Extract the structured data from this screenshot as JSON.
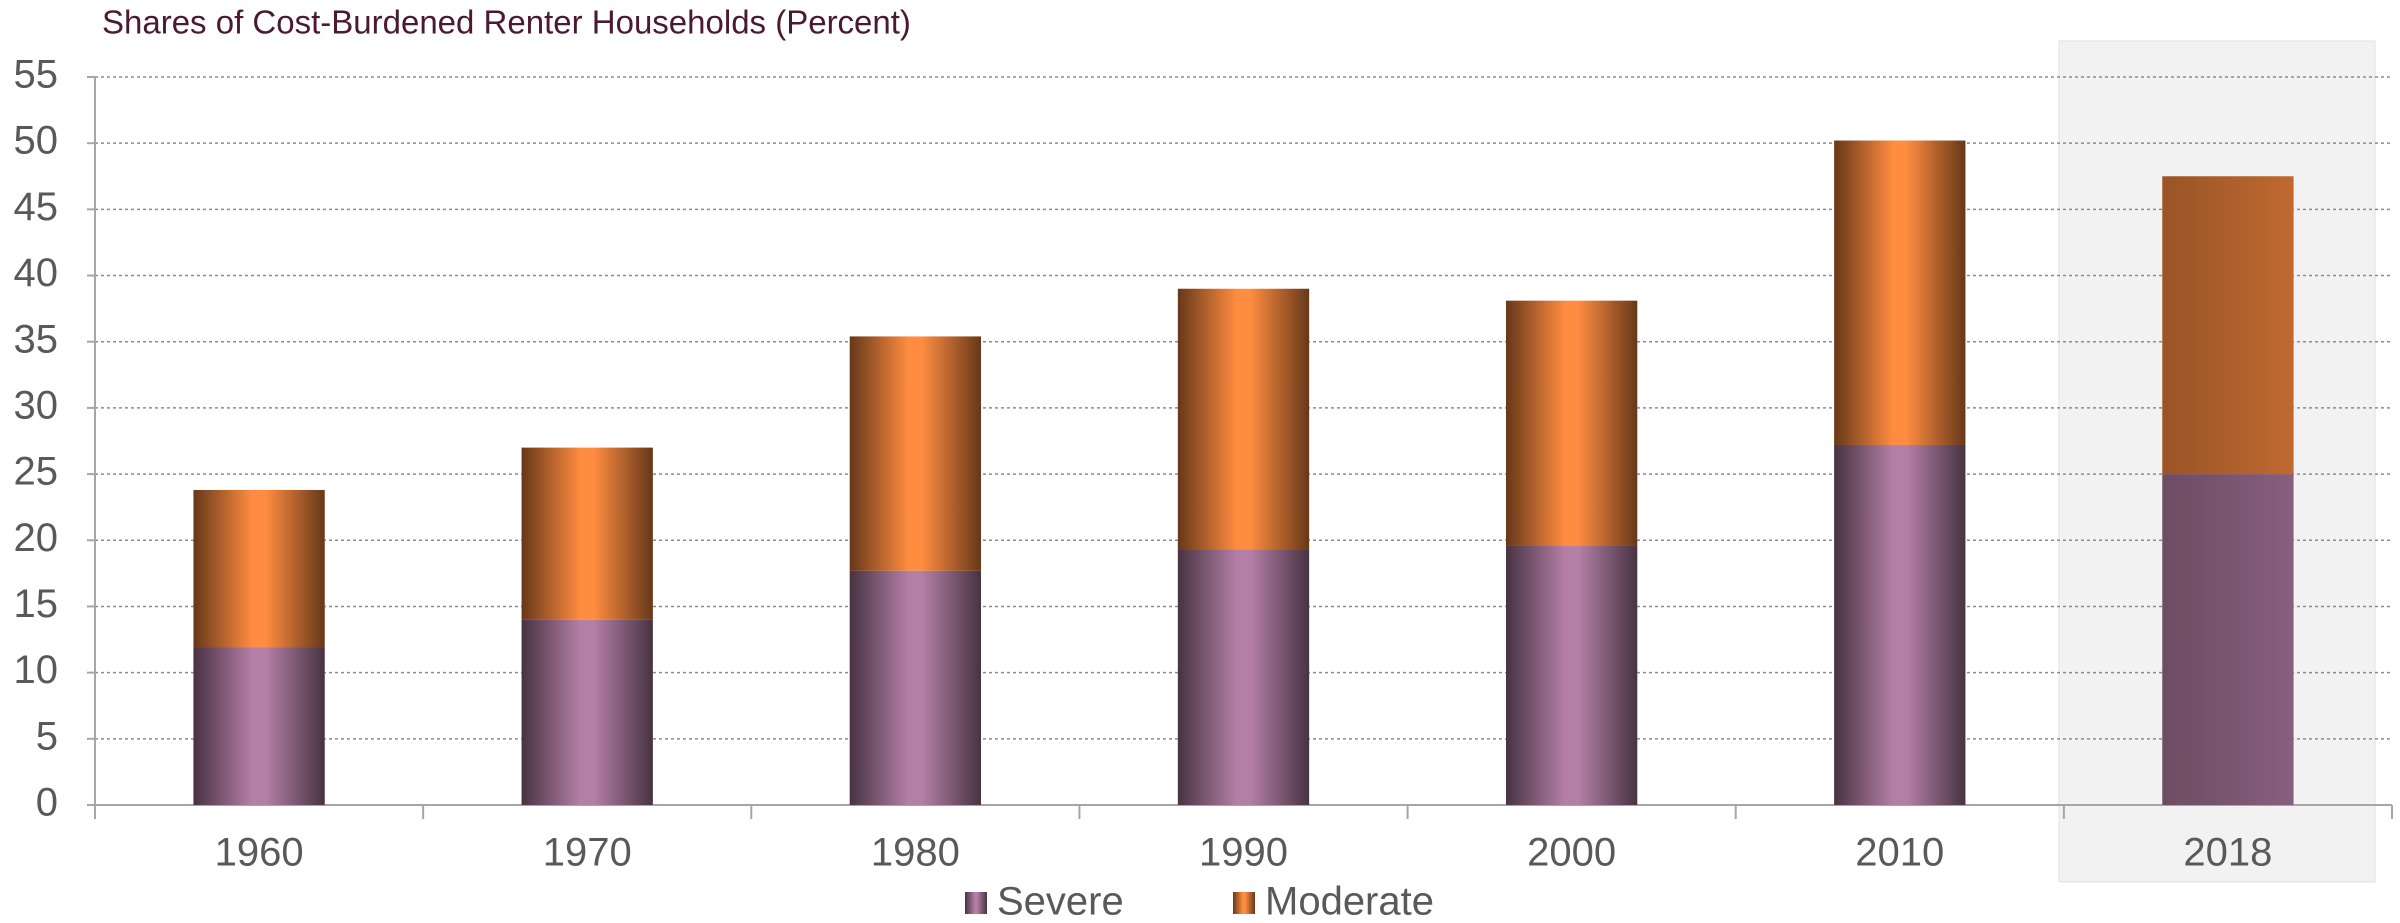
{
  "chart_data": {
    "type": "stacked_bar",
    "title": "Shares of Cost-Burdened Renter Households (Percent)",
    "categories": [
      "1960",
      "1970",
      "1980",
      "1990",
      "2000",
      "2010",
      "2018"
    ],
    "series": [
      {
        "name": "Severe",
        "color": "#b47fa6",
        "values": [
          11.9,
          14.0,
          17.7,
          19.3,
          19.6,
          27.2,
          25.0
        ]
      },
      {
        "name": "Moderate",
        "color": "#ff8c40",
        "values": [
          11.9,
          13.0,
          17.7,
          19.7,
          18.5,
          23.0,
          22.5
        ]
      }
    ],
    "ylim": [
      0,
      55
    ],
    "yticks": [
      0,
      5,
      10,
      15,
      20,
      25,
      30,
      35,
      40,
      45,
      50,
      55
    ],
    "grid": true
  }
}
